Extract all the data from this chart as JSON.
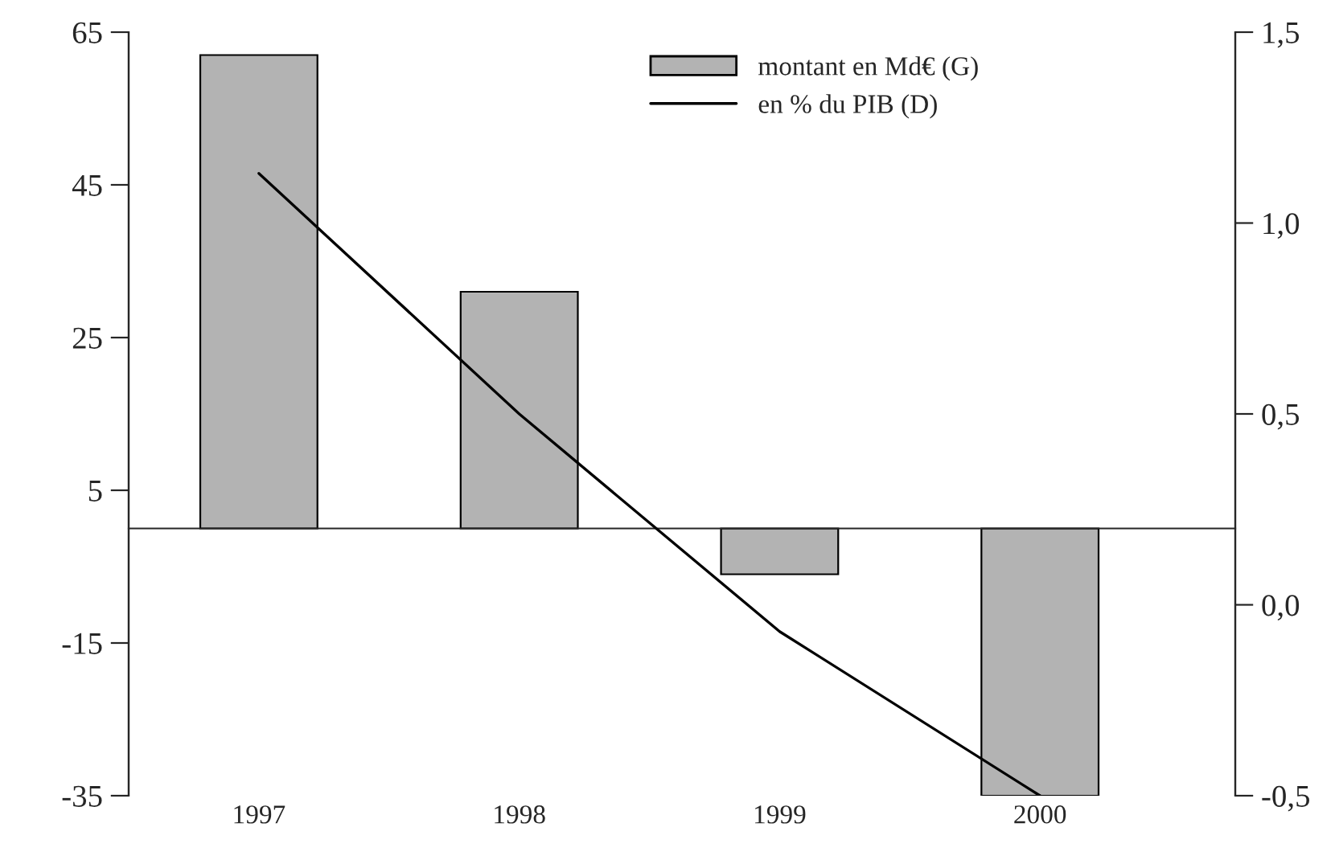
{
  "chart_data": {
    "type": "bar",
    "categories": [
      "1997",
      "1998",
      "1999",
      "2000"
    ],
    "series": [
      {
        "name": "montant en Md€ (G)",
        "color": "#b3b3b3",
        "values": [
          62,
          31,
          -6,
          -35
        ]
      },
      {
        "name": "en % du PIB (D)",
        "type": "line",
        "axis": "y2",
        "color": "#000000",
        "values": [
          1.13,
          0.5,
          -0.07,
          -0.5
        ]
      }
    ],
    "ylim": [
      -35,
      65
    ],
    "yticks": [
      -35,
      -15,
      5,
      25,
      45,
      65
    ],
    "y2lim": [
      -0.5,
      1.5
    ],
    "y2ticks": [
      {
        "value": -0.5,
        "label": "-0,5"
      },
      {
        "value": 0.0,
        "label": "0,0"
      },
      {
        "value": 0.5,
        "label": "0,5"
      },
      {
        "value": 1.0,
        "label": "1,0"
      },
      {
        "value": 1.5,
        "label": "1,5"
      }
    ],
    "legend": "top",
    "grid": false
  }
}
